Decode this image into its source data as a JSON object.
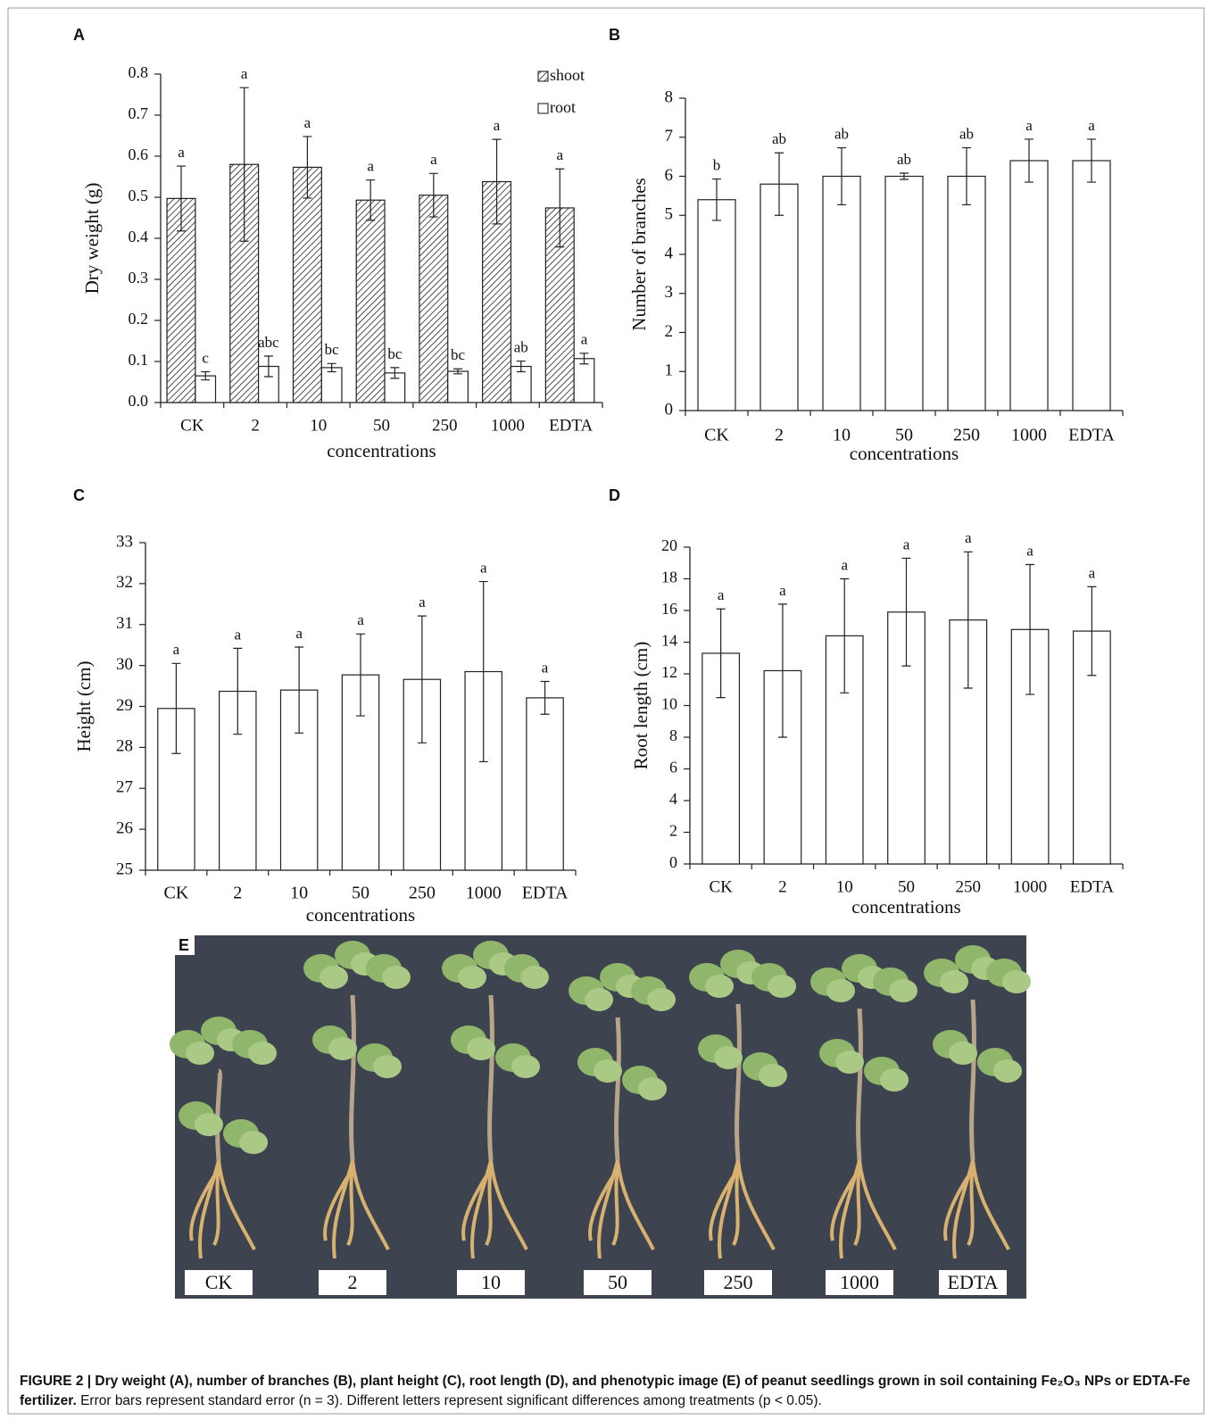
{
  "chart_data": [
    {
      "type": "bar",
      "panel_label": "A",
      "y_label": "Dry weight (g)",
      "x_label": "concentrations",
      "categories": [
        "CK",
        "2",
        "10",
        "50",
        "250",
        "1000",
        "EDTA"
      ],
      "ylim": [
        0,
        0.8
      ],
      "yticks": [
        {
          "value": 0,
          "label": "0.0"
        },
        0.1,
        0.2,
        0.3,
        0.4,
        0.5,
        0.6,
        0.7,
        0.8
      ],
      "legend": "top-right",
      "series": [
        {
          "name": "shoot",
          "color": "#ffffff",
          "hatch": true,
          "values": [
            0.497,
            0.58,
            0.573,
            0.493,
            0.505,
            0.538,
            0.474
          ],
          "errors": [
            0.079,
            0.187,
            0.075,
            0.049,
            0.053,
            0.103,
            0.095
          ],
          "significance_letters": [
            "a",
            "a",
            "a",
            "a",
            "a",
            "a",
            "a"
          ]
        },
        {
          "name": "root",
          "color": "#ffffff",
          "hatch": false,
          "values": [
            0.065,
            0.088,
            0.085,
            0.072,
            0.076,
            0.088,
            0.107
          ],
          "errors": [
            0.01,
            0.025,
            0.01,
            0.013,
            0.006,
            0.013,
            0.013
          ],
          "significance_letters": [
            "c",
            "abc",
            "bc",
            "bc",
            "bc",
            "ab",
            "a"
          ]
        }
      ]
    },
    {
      "type": "bar",
      "panel_label": "B",
      "y_label": "Number of branches",
      "x_label": "concentrations",
      "categories": [
        "CK",
        "2",
        "10",
        "50",
        "250",
        "1000",
        "EDTA"
      ],
      "ylim": [
        0,
        8
      ],
      "yticks": [
        0,
        1,
        2,
        3,
        4,
        5,
        6,
        7,
        8
      ],
      "series": [
        {
          "color": "#ffffff",
          "hatch": false,
          "values": [
            5.4,
            5.8,
            6.0,
            6.0,
            6.0,
            6.4,
            6.4
          ],
          "errors": [
            0.53,
            0.8,
            0.73,
            0.08,
            0.73,
            0.55,
            0.55
          ],
          "significance_letters": [
            "b",
            "ab",
            "ab",
            "ab",
            "ab",
            "a",
            "a"
          ]
        }
      ]
    },
    {
      "type": "bar",
      "panel_label": "C",
      "y_label": "Height (cm)",
      "x_label": "concentrations",
      "categories": [
        "CK",
        "2",
        "10",
        "50",
        "250",
        "1000",
        "EDTA"
      ],
      "ylim": [
        25,
        33
      ],
      "yticks": [
        25,
        26,
        27,
        28,
        29,
        30,
        31,
        32,
        33
      ],
      "series": [
        {
          "color": "#ffffff",
          "hatch": false,
          "values": [
            28.95,
            29.37,
            29.4,
            29.77,
            29.66,
            29.85,
            29.21
          ],
          "errors": [
            1.1,
            1.05,
            1.05,
            1.0,
            1.55,
            2.2,
            0.4
          ],
          "significance_letters": [
            "a",
            "a",
            "a",
            "a",
            "a",
            "a",
            "a"
          ]
        }
      ]
    },
    {
      "type": "bar",
      "panel_label": "D",
      "y_label": "Root length (cm)",
      "x_label": "concentrations",
      "categories": [
        "CK",
        "2",
        "10",
        "50",
        "250",
        "1000",
        "EDTA"
      ],
      "ylim": [
        0,
        20
      ],
      "yticks": [
        0,
        2,
        4,
        6,
        8,
        10,
        12,
        14,
        16,
        18,
        20
      ],
      "series": [
        {
          "color": "#ffffff",
          "hatch": false,
          "values": [
            13.3,
            12.2,
            14.4,
            15.9,
            15.4,
            14.8,
            14.7
          ],
          "errors": [
            2.8,
            4.2,
            3.6,
            3.4,
            4.3,
            4.1,
            2.8
          ],
          "significance_letters": [
            "a",
            "a",
            "a",
            "a",
            "a",
            "a",
            "a"
          ]
        }
      ]
    }
  ],
  "photo": {
    "panel_label": "E",
    "labels": [
      "CK",
      "2",
      "10",
      "50",
      "250",
      "1000",
      "EDTA"
    ]
  },
  "caption": {
    "title": "FIGURE 2 | Dry weight (A), number of branches (B), plant height (C), root length (D), and phenotypic image (E) of peanut seedlings grown in soil containing Fe₂O₃ NPs or EDTA-Fe fertilizer.",
    "text": "Error bars represent standard error (n = 3). Different letters represent significant differences among treatments (p < 0.05)."
  }
}
